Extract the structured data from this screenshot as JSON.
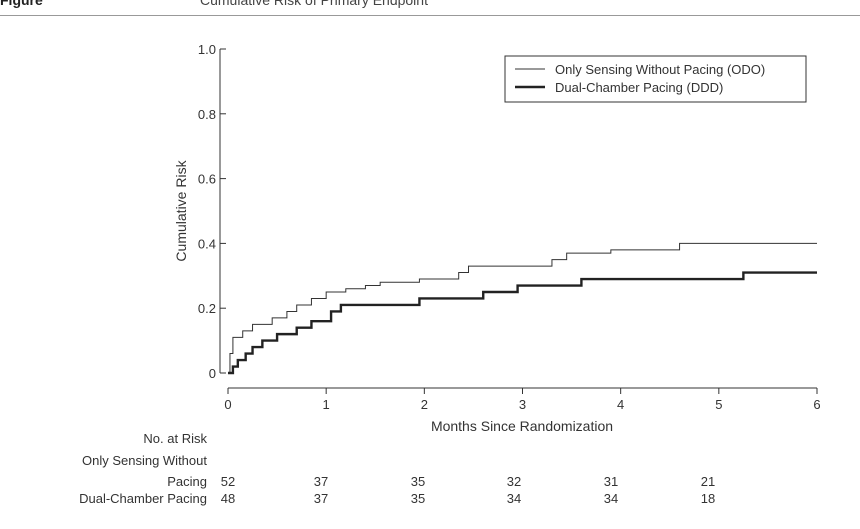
{
  "header": {
    "figure_label": "Figure",
    "subtitle": "Cumulative Risk of Primary Endpoint"
  },
  "colors": {
    "axis": "#333333",
    "odo_line": "#333333",
    "ddd_line": "#222222",
    "text": "#333333"
  },
  "chart_data": {
    "type": "line",
    "title": "",
    "xlabel": "Months Since Randomization",
    "ylabel": "Cumulative Risk",
    "xlim": [
      0,
      6
    ],
    "ylim": [
      0,
      1.0
    ],
    "xticks": [
      "0",
      "1",
      "2",
      "3",
      "4",
      "5",
      "6"
    ],
    "yticks": [
      "0",
      "0.2",
      "0.4",
      "0.6",
      "0.8",
      "1.0"
    ],
    "grid": false,
    "legend_position": "top-right",
    "series": [
      {
        "name": "Only Sensing Without Pacing (ODO)",
        "style": "thin step line",
        "points": [
          [
            0,
            0
          ],
          [
            0.02,
            0.06
          ],
          [
            0.05,
            0.11
          ],
          [
            0.15,
            0.13
          ],
          [
            0.25,
            0.15
          ],
          [
            0.45,
            0.17
          ],
          [
            0.6,
            0.19
          ],
          [
            0.7,
            0.21
          ],
          [
            0.85,
            0.23
          ],
          [
            1.0,
            0.25
          ],
          [
            1.2,
            0.26
          ],
          [
            1.4,
            0.27
          ],
          [
            1.55,
            0.28
          ],
          [
            1.95,
            0.29
          ],
          [
            2.35,
            0.31
          ],
          [
            2.45,
            0.33
          ],
          [
            3.3,
            0.35
          ],
          [
            3.45,
            0.37
          ],
          [
            3.9,
            0.38
          ],
          [
            4.6,
            0.4
          ],
          [
            6.0,
            0.4
          ]
        ]
      },
      {
        "name": "Dual-Chamber Pacing (DDD)",
        "style": "thick step line",
        "points": [
          [
            0,
            0
          ],
          [
            0.05,
            0.02
          ],
          [
            0.1,
            0.04
          ],
          [
            0.18,
            0.06
          ],
          [
            0.25,
            0.08
          ],
          [
            0.35,
            0.1
          ],
          [
            0.5,
            0.12
          ],
          [
            0.7,
            0.14
          ],
          [
            0.85,
            0.16
          ],
          [
            1.05,
            0.19
          ],
          [
            1.15,
            0.21
          ],
          [
            1.95,
            0.23
          ],
          [
            2.6,
            0.25
          ],
          [
            2.95,
            0.27
          ],
          [
            3.6,
            0.29
          ],
          [
            5.25,
            0.31
          ],
          [
            6.0,
            0.31
          ]
        ]
      }
    ]
  },
  "risk_table": {
    "header": "No. at Risk",
    "rows": [
      {
        "label_line1": "Only Sensing Without",
        "label_line2": "Pacing",
        "values": [
          "52",
          "37",
          "35",
          "32",
          "31",
          "21"
        ]
      },
      {
        "label": "Dual-Chamber Pacing",
        "values": [
          "48",
          "37",
          "35",
          "34",
          "34",
          "18"
        ]
      }
    ]
  }
}
